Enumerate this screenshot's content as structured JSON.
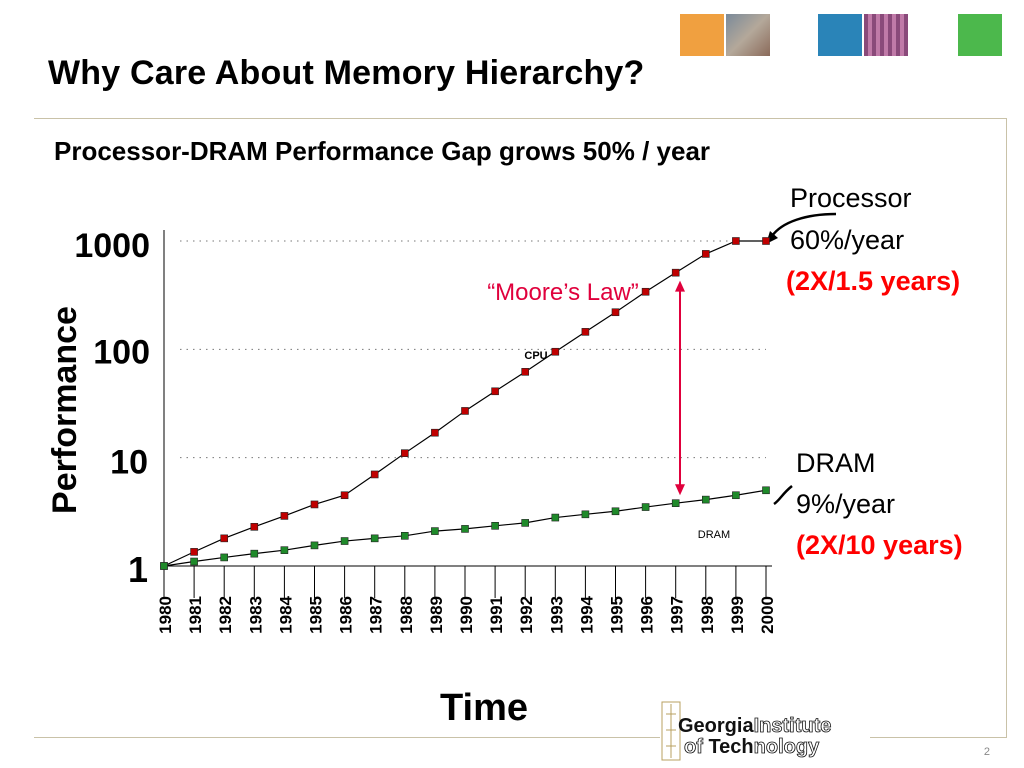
{
  "slide": {
    "title": "Why Care About Memory Hierarchy?",
    "subtitle": "Processor-DRAM Performance Gap grows 50% / year",
    "page_number": "2"
  },
  "logo": {
    "line1_bold": "Georgia",
    "line1_outline": "Institute",
    "line2_outline": "of ",
    "line2_bold": "Tech",
    "line2_outline_end": "nology"
  },
  "colors": {
    "cpu_marker": "#c00000",
    "dram_marker": "#1f8a2a",
    "gap_arrow": "#e0003c",
    "annotation_red": "#ff0000",
    "moore_text": "#e0003c",
    "deco_orange": "#f0a040",
    "deco_blue": "#2a84b8",
    "deco_green": "#4cb84c"
  },
  "chart_data": {
    "type": "line",
    "scale": "log",
    "x": [
      1980,
      1981,
      1982,
      1983,
      1984,
      1985,
      1986,
      1987,
      1988,
      1989,
      1990,
      1991,
      1992,
      1993,
      1994,
      1995,
      1996,
      1997,
      1998,
      1999,
      2000
    ],
    "x_tick_labels": [
      "1980",
      "1981",
      "1982",
      "1983",
      "1984",
      "1985",
      "1986",
      "1987",
      "1988",
      "1989",
      "1990",
      "1991",
      "1992",
      "1993",
      "1994",
      "1995",
      "1996",
      "1997",
      "1998",
      "1999",
      "2000"
    ],
    "series": [
      {
        "name": "CPU",
        "values": [
          1,
          1.35,
          1.8,
          2.3,
          2.9,
          3.7,
          4.5,
          7,
          11,
          17,
          27,
          41,
          62,
          95,
          145,
          220,
          340,
          510,
          760,
          1150,
          1000
        ]
      },
      {
        "name": "DRAM",
        "values": [
          1,
          1.1,
          1.2,
          1.3,
          1.4,
          1.55,
          1.7,
          1.8,
          1.9,
          2.1,
          2.2,
          2.35,
          2.5,
          2.8,
          3,
          3.2,
          3.5,
          3.8,
          4.1,
          4.5,
          5
        ]
      }
    ],
    "ylabel": "Performance",
    "xlabel": "Time",
    "y_tick_labels": [
      "1",
      "10",
      "100",
      "1000"
    ],
    "y_ticks": [
      1,
      10,
      100,
      1000
    ],
    "ylim": [
      1,
      1000
    ],
    "grid": "dotted horizontal",
    "series_labels": {
      "cpu": "CPU",
      "dram": "DRAM"
    },
    "annotations": {
      "moore": "“Moore’s Law”",
      "processor_title": "Processor",
      "processor_rate": "60%/year",
      "processor_double": "(2X/1.5 years)",
      "dram_title": "DRAM",
      "dram_rate": "9%/year",
      "dram_double": "(2X/10 years)"
    }
  }
}
